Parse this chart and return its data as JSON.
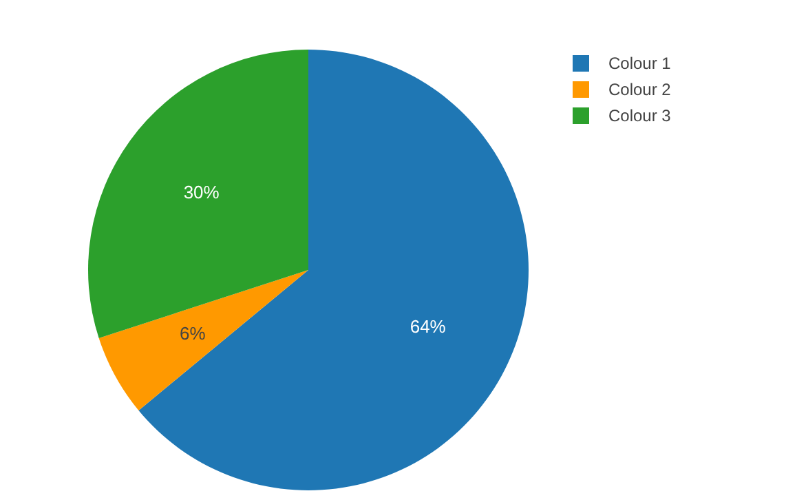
{
  "chart_data": {
    "type": "pie",
    "categories": [
      "Colour 1",
      "Colour 2",
      "Colour 3"
    ],
    "values": [
      64,
      6,
      30
    ],
    "colors": [
      "#1f77b4",
      "#ff9900",
      "#2ca02c"
    ],
    "value_labels": [
      "64%",
      "6%",
      "30%"
    ],
    "legend": "top right"
  }
}
